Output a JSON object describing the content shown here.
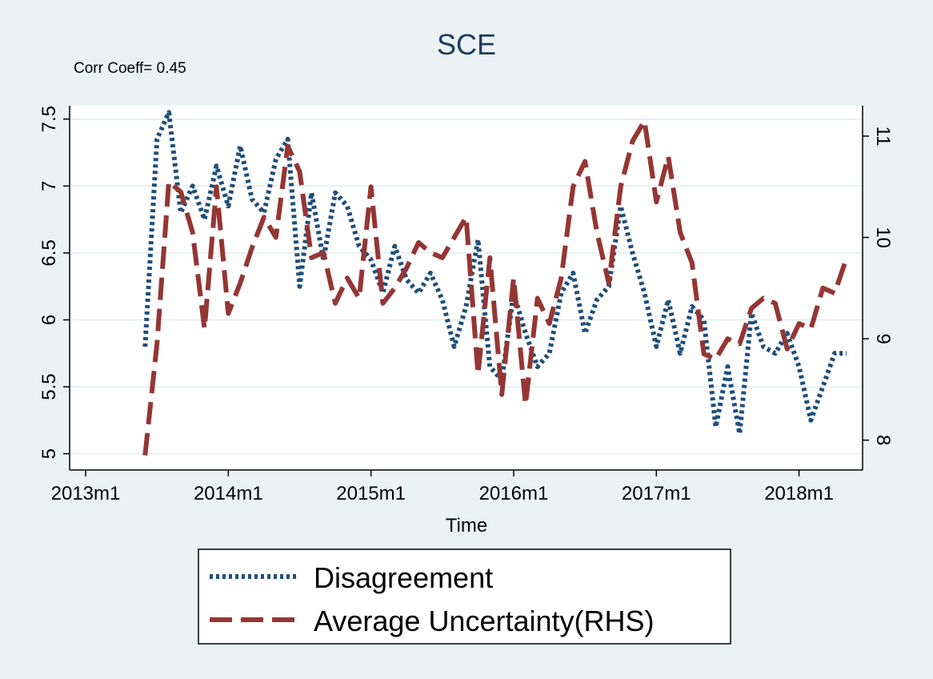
{
  "chart_data": {
    "type": "line",
    "title": "SCE",
    "annotation": "Corr Coeff= 0.45",
    "xlabel": "Time",
    "ylabel": "",
    "y2label": "",
    "x_ticks": [
      "2013m1",
      "2014m1",
      "2015m1",
      "2016m1",
      "2017m1",
      "2018m1"
    ],
    "x_range": [
      "2013m1",
      "2018m5"
    ],
    "ylim": [
      4.95,
      7.6
    ],
    "y_ticks": [
      "5",
      "5.5",
      "6",
      "6.5",
      "7",
      "7.5"
    ],
    "y2lim": [
      7.8,
      11.3
    ],
    "y2_ticks": [
      "8",
      "9",
      "10",
      "11"
    ],
    "grid": true,
    "legend_position": "bottom",
    "x": [
      "2013m6",
      "2013m7",
      "2013m8",
      "2013m9",
      "2013m10",
      "2013m11",
      "2013m12",
      "2014m1",
      "2014m2",
      "2014m3",
      "2014m4",
      "2014m5",
      "2014m6",
      "2014m7",
      "2014m8",
      "2014m9",
      "2014m10",
      "2014m11",
      "2014m12",
      "2015m1",
      "2015m2",
      "2015m3",
      "2015m4",
      "2015m5",
      "2015m6",
      "2015m7",
      "2015m8",
      "2015m9",
      "2015m10",
      "2015m11",
      "2015m12",
      "2016m1",
      "2016m2",
      "2016m3",
      "2016m4",
      "2016m5",
      "2016m6",
      "2016m7",
      "2016m8",
      "2016m9",
      "2016m10",
      "2016m11",
      "2016m12",
      "2017m1",
      "2017m2",
      "2017m3",
      "2017m4",
      "2017m5",
      "2017m6",
      "2017m7",
      "2017m8",
      "2017m9",
      "2017m10",
      "2017m11",
      "2017m12",
      "2018m1",
      "2018m2",
      "2018m3",
      "2018m4",
      "2018m5"
    ],
    "series": [
      {
        "name": "Disagreement",
        "axis": "left",
        "color": "#1f4e79",
        "style": "dotted",
        "values": [
          5.8,
          7.35,
          7.55,
          6.8,
          7.0,
          6.75,
          7.15,
          6.85,
          7.3,
          6.9,
          6.8,
          7.2,
          7.35,
          6.25,
          6.95,
          6.45,
          6.95,
          6.85,
          6.55,
          6.45,
          6.2,
          6.55,
          6.3,
          6.2,
          6.35,
          6.15,
          5.8,
          6.1,
          6.6,
          5.65,
          5.55,
          6.2,
          5.9,
          5.65,
          5.75,
          6.2,
          6.35,
          5.9,
          6.15,
          6.25,
          6.85,
          6.5,
          6.2,
          5.8,
          6.15,
          5.75,
          6.1,
          6.0,
          5.2,
          5.65,
          5.15,
          6.05,
          5.8,
          5.75,
          5.9,
          5.65,
          5.25,
          5.5,
          5.75,
          5.75
        ]
      },
      {
        "name": "Average Uncertainty(RHS)",
        "axis": "right",
        "color": "#943634",
        "style": "dashed",
        "values": [
          7.85,
          8.95,
          10.55,
          10.45,
          10.05,
          9.1,
          10.5,
          9.25,
          9.55,
          9.9,
          10.2,
          10.0,
          10.9,
          10.65,
          9.8,
          9.85,
          9.35,
          9.6,
          9.4,
          10.5,
          9.35,
          9.5,
          9.7,
          9.95,
          9.85,
          9.8,
          10.0,
          10.2,
          8.65,
          9.8,
          8.45,
          9.6,
          8.35,
          9.4,
          9.15,
          9.6,
          10.5,
          10.75,
          10.05,
          9.55,
          10.5,
          10.95,
          11.15,
          10.35,
          10.8,
          10.05,
          9.75,
          8.85,
          8.8,
          9.0,
          8.95,
          9.3,
          9.4,
          9.35,
          8.9,
          9.15,
          9.1,
          9.5,
          9.45,
          9.8
        ]
      }
    ]
  }
}
